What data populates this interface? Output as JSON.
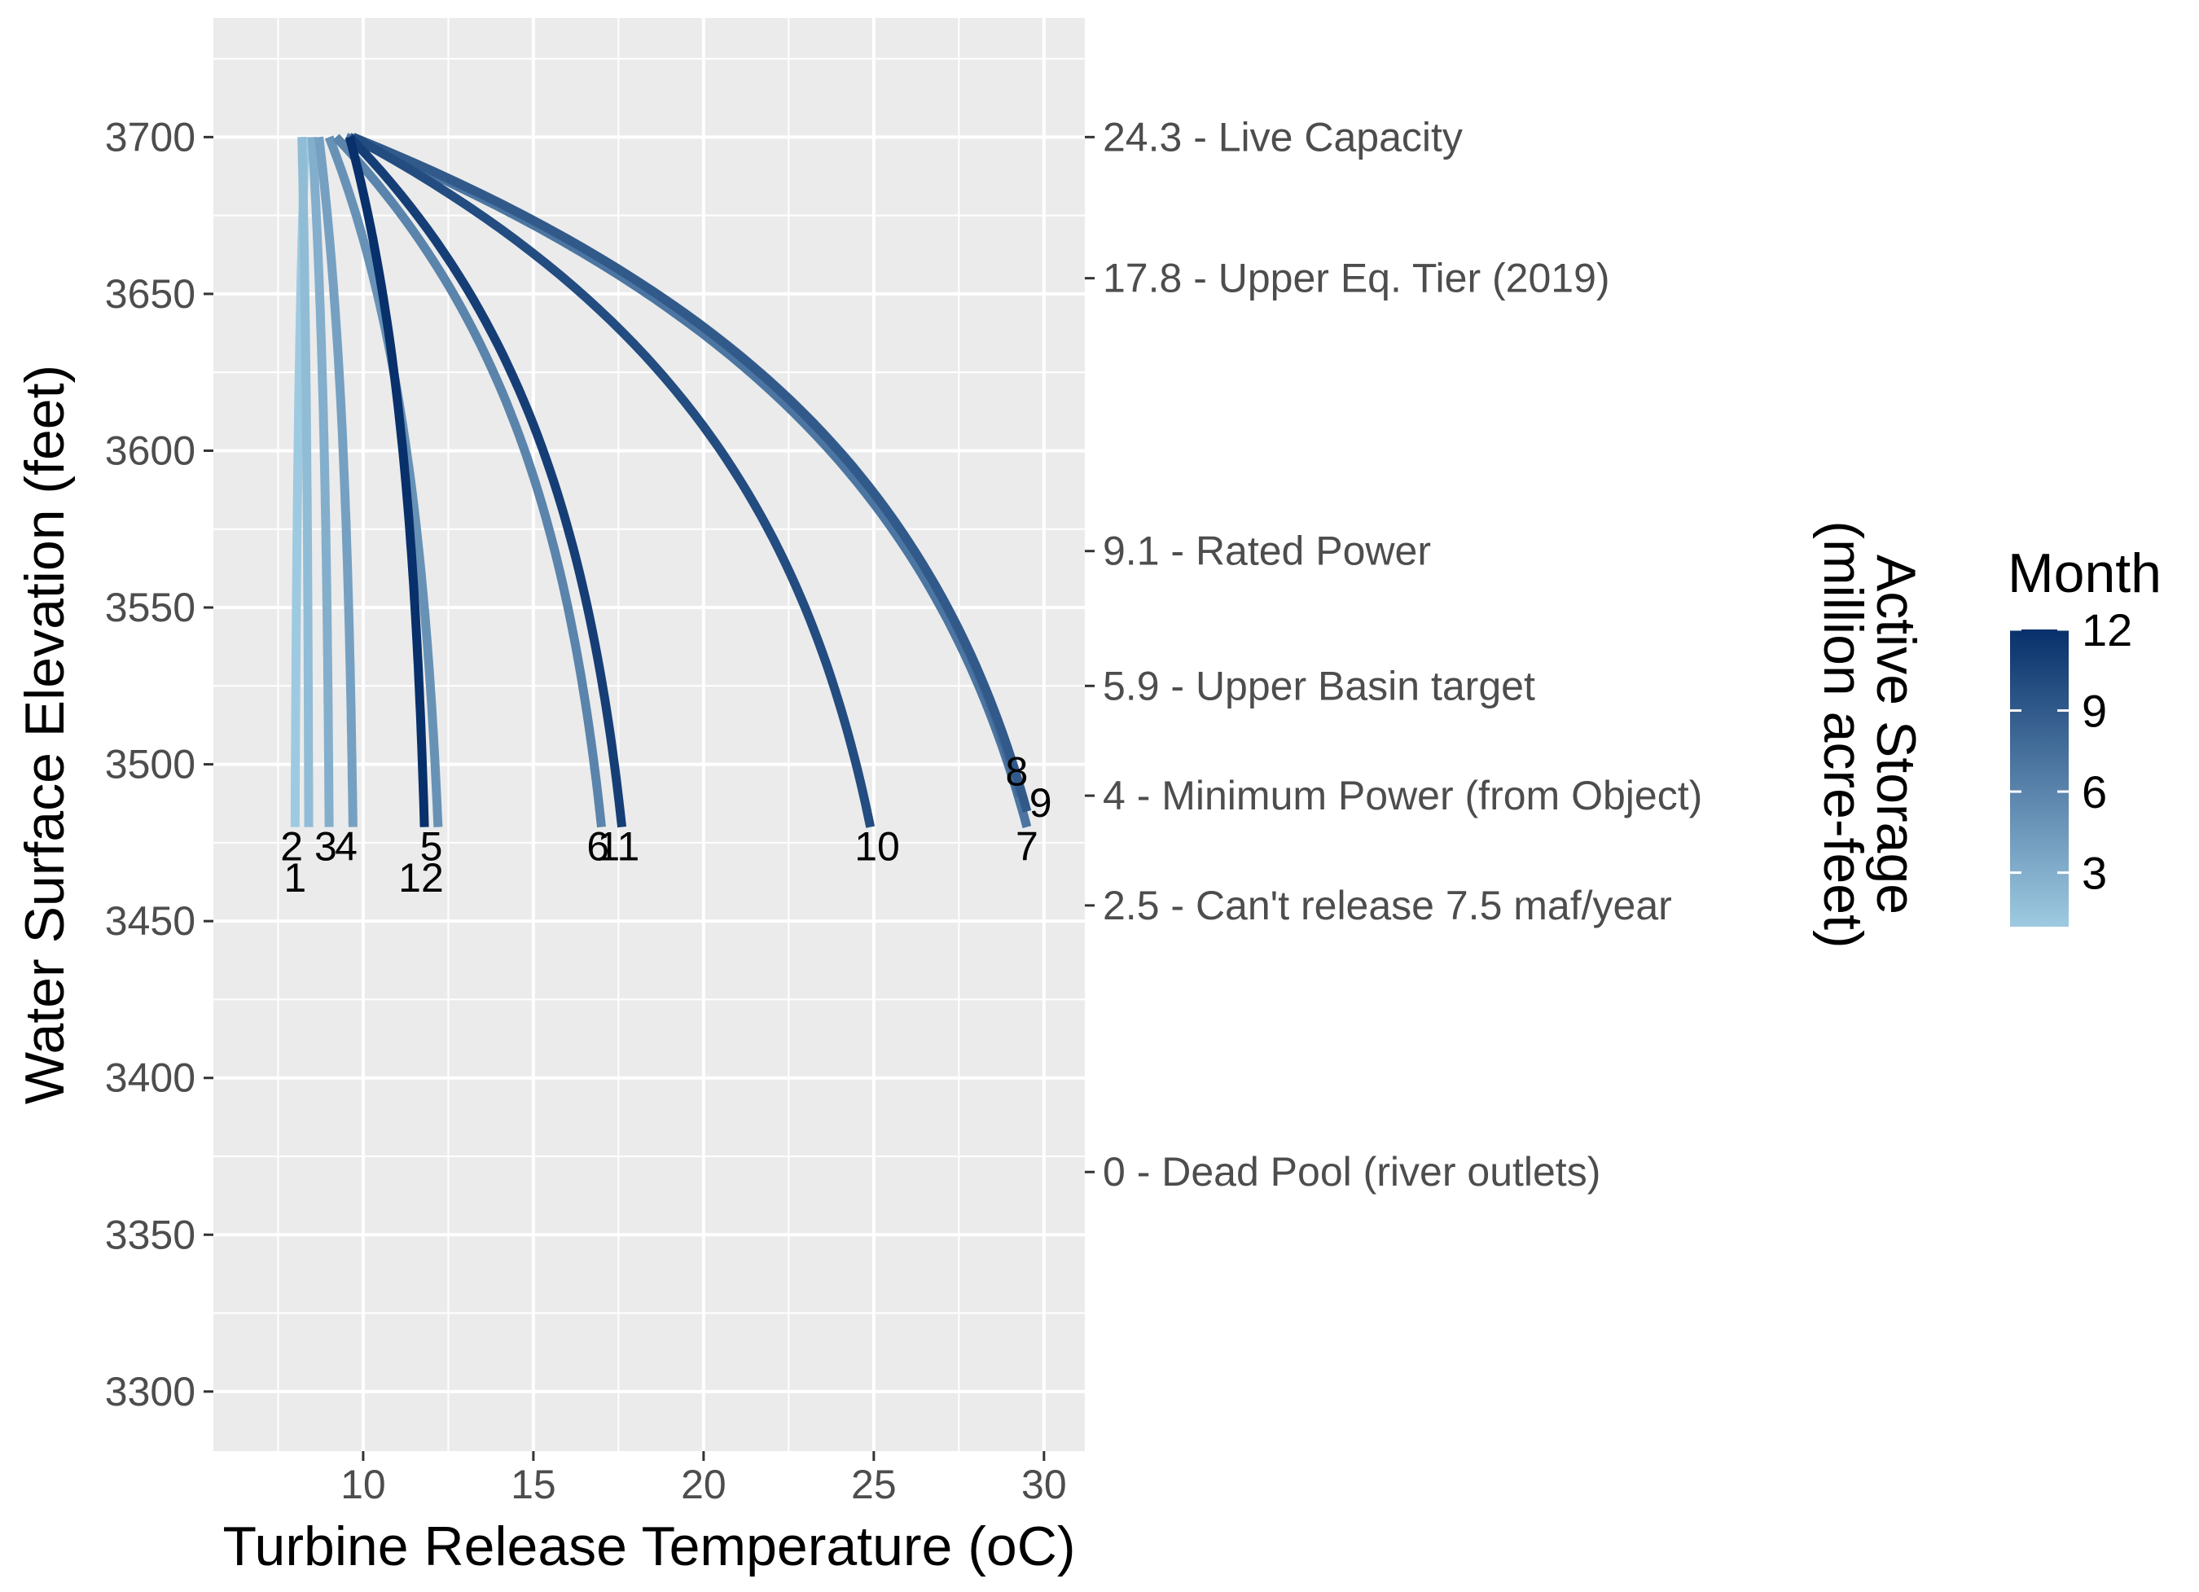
{
  "chart_data": {
    "type": "line",
    "xlabel": "Turbine Release Temperature (oC)",
    "ylabel": "Water Surface Elevation (feet)",
    "secondary_ylabel": [
      "Active Storage",
      "(million acre-feet)"
    ],
    "xlim": [
      5.6,
      31.2
    ],
    "ylim": [
      3281,
      3738
    ],
    "x_ticks": [
      10,
      15,
      20,
      25,
      30
    ],
    "y_ticks": [
      3300,
      3350,
      3400,
      3450,
      3500,
      3550,
      3600,
      3650,
      3700
    ],
    "grid": true,
    "secondary_axis": [
      {
        "elevation": 3700,
        "label": "24.3 - Live Capacity"
      },
      {
        "elevation": 3655,
        "label": "17.8 - Upper Eq. Tier (2019)"
      },
      {
        "elevation": 3568,
        "label": "9.1 - Rated Power"
      },
      {
        "elevation": 3525,
        "label": "5.9 - Upper Basin target"
      },
      {
        "elevation": 3490,
        "label": "4 - Minimum Power (from Object)"
      },
      {
        "elevation": 3455,
        "label": "2.5 - Can't release 7.5 maf/year"
      },
      {
        "elevation": 3370,
        "label": "0 - Dead Pool (river outlets)"
      }
    ],
    "series": [
      {
        "name": "1",
        "month": 1,
        "points": [
          [
            8.3,
            3700
          ],
          [
            8.0,
            3480
          ]
        ]
      },
      {
        "name": "2",
        "month": 2,
        "points": [
          [
            8.2,
            3700
          ],
          [
            8.4,
            3480
          ]
        ]
      },
      {
        "name": "3",
        "month": 3,
        "points": [
          [
            8.5,
            3700
          ],
          [
            9.0,
            3480
          ]
        ]
      },
      {
        "name": "4",
        "month": 4,
        "points": [
          [
            8.7,
            3700
          ],
          [
            9.7,
            3480
          ]
        ]
      },
      {
        "name": "5",
        "month": 5,
        "points": [
          [
            9.0,
            3700
          ],
          [
            12.2,
            3480
          ]
        ]
      },
      {
        "name": "6",
        "month": 6,
        "points": [
          [
            9.2,
            3700
          ],
          [
            17.0,
            3480
          ]
        ]
      },
      {
        "name": "7",
        "month": 7,
        "points": [
          [
            9.5,
            3700
          ],
          [
            29.5,
            3480
          ]
        ]
      },
      {
        "name": "8",
        "month": 8,
        "points": [
          [
            9.6,
            3700
          ],
          [
            29.3,
            3490
          ]
        ]
      },
      {
        "name": "9",
        "month": 9,
        "points": [
          [
            9.7,
            3700
          ],
          [
            29.5,
            3485
          ]
        ]
      },
      {
        "name": "10",
        "month": 10,
        "points": [
          [
            9.7,
            3700
          ],
          [
            24.9,
            3480
          ]
        ]
      },
      {
        "name": "11",
        "month": 11,
        "points": [
          [
            9.6,
            3700
          ],
          [
            17.6,
            3480
          ]
        ]
      },
      {
        "name": "12",
        "month": 12,
        "points": [
          [
            9.6,
            3700
          ],
          [
            11.8,
            3480
          ]
        ]
      }
    ],
    "month_labels": [
      {
        "text": "1",
        "x": 8.0,
        "y": 3464
      },
      {
        "text": "2",
        "x": 7.9,
        "y": 3474
      },
      {
        "text": "3",
        "x": 8.9,
        "y": 3474
      },
      {
        "text": "4",
        "x": 9.5,
        "y": 3474
      },
      {
        "text": "5",
        "x": 12.0,
        "y": 3474
      },
      {
        "text": "6",
        "x": 16.9,
        "y": 3474
      },
      {
        "text": "11",
        "x": 17.5,
        "y": 3474
      },
      {
        "text": "10",
        "x": 25.1,
        "y": 3474
      },
      {
        "text": "7",
        "x": 29.5,
        "y": 3474
      },
      {
        "text": "8",
        "x": 29.2,
        "y": 3498
      },
      {
        "text": "9",
        "x": 29.9,
        "y": 3488
      },
      {
        "text": "12",
        "x": 11.7,
        "y": 3464
      }
    ],
    "legend": {
      "title": "Month",
      "position": "right",
      "ticks": [
        3,
        6,
        9,
        12
      ],
      "range": [
        1,
        12
      ],
      "color_low": "#9ecae1",
      "color_high": "#08306b"
    }
  }
}
